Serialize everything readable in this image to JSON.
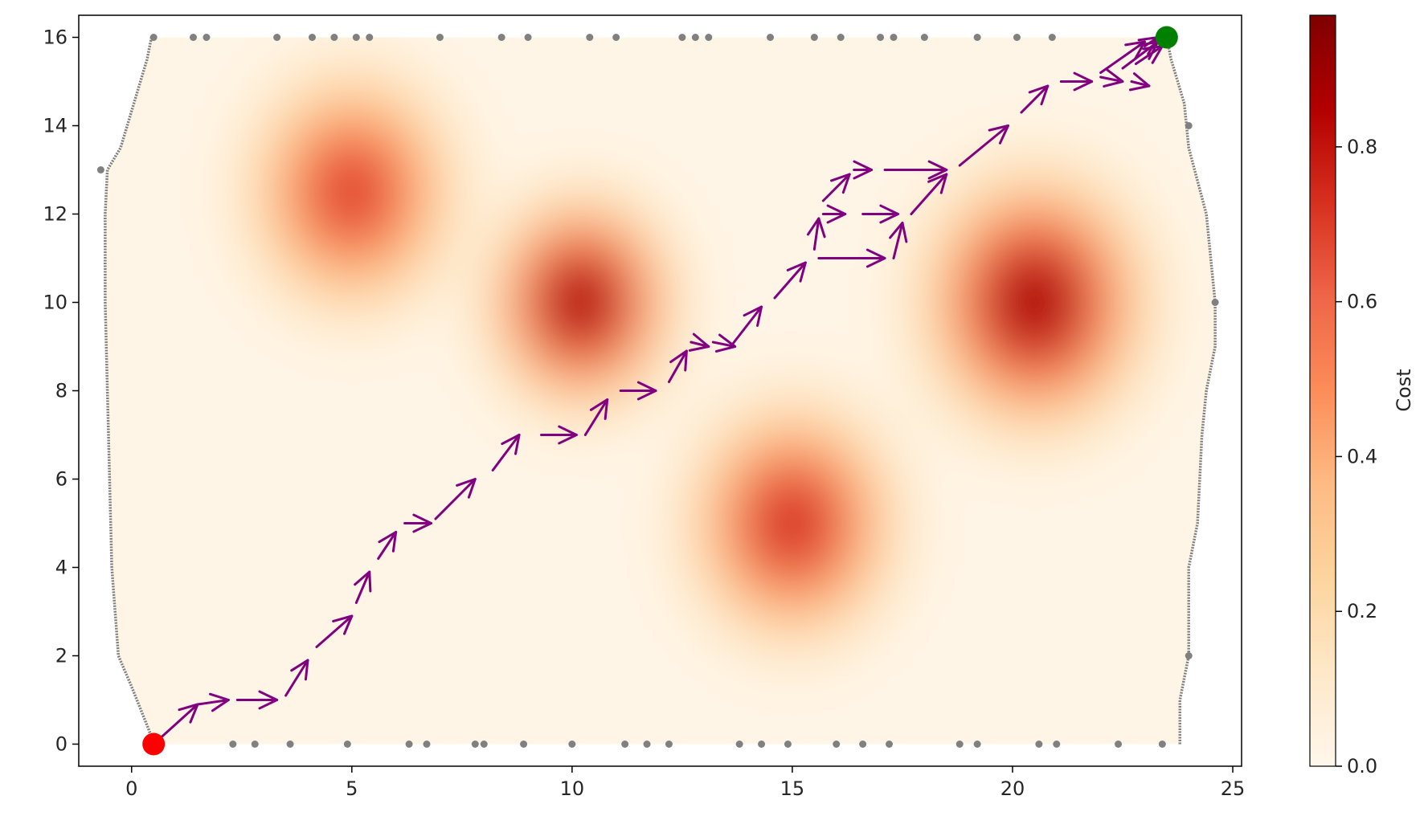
{
  "chart_data": {
    "type": "heatmap",
    "title": "",
    "xlabel": "",
    "ylabel": "",
    "xlim": [
      -1.2,
      25.2
    ],
    "ylim": [
      -0.5,
      16.5
    ],
    "x_ticks": [
      "0",
      "5",
      "10",
      "15",
      "20",
      "25"
    ],
    "y_ticks": [
      "0",
      "2",
      "4",
      "6",
      "8",
      "10",
      "12",
      "14",
      "16"
    ],
    "colorbar": {
      "label": "Cost",
      "colormap": "OrRd",
      "range": [
        0.0,
        0.97
      ],
      "ticks": [
        "0.0",
        "0.2",
        "0.4",
        "0.6",
        "0.8"
      ],
      "colors": [
        "#fff7ec",
        "#fee8c8",
        "#fdd49e",
        "#fdbb84",
        "#fc8d59",
        "#ef6548",
        "#d7301f",
        "#b30000",
        "#7f0000"
      ]
    },
    "field_background": 0.02,
    "obstacles": [
      {
        "x": 5.0,
        "y": 12.5,
        "peak": 0.75,
        "spread": 1.5
      },
      {
        "x": 10.2,
        "y": 10.0,
        "peak": 0.95,
        "spread": 1.3
      },
      {
        "x": 20.5,
        "y": 10.0,
        "peak": 0.95,
        "spread": 1.6
      },
      {
        "x": 15.0,
        "y": 5.0,
        "peak": 0.8,
        "spread": 1.5
      }
    ],
    "region_outline": [
      [
        0.45,
        16
      ],
      [
        0.35,
        15.5
      ],
      [
        0.2,
        15
      ],
      [
        0.05,
        14.5
      ],
      [
        -0.1,
        14
      ],
      [
        -0.25,
        13.5
      ],
      [
        -0.55,
        13
      ],
      [
        -0.6,
        12
      ],
      [
        -0.6,
        10
      ],
      [
        -0.55,
        8
      ],
      [
        -0.5,
        6
      ],
      [
        -0.45,
        4
      ],
      [
        -0.3,
        2
      ],
      [
        0.0,
        1.3
      ],
      [
        0.2,
        0.8
      ],
      [
        0.4,
        0.3
      ],
      [
        0.5,
        0
      ],
      [
        23.8,
        0
      ],
      [
        23.8,
        1
      ],
      [
        24.0,
        2
      ],
      [
        24.0,
        4
      ],
      [
        24.2,
        5
      ],
      [
        24.3,
        7
      ],
      [
        24.4,
        8
      ],
      [
        24.6,
        9
      ],
      [
        24.6,
        10
      ],
      [
        24.5,
        11
      ],
      [
        24.4,
        12
      ],
      [
        24.0,
        13.5
      ],
      [
        23.9,
        14.5
      ],
      [
        23.6,
        15.5
      ],
      [
        23.5,
        16
      ]
    ],
    "boundary_points": [
      [
        0.5,
        16
      ],
      [
        1.4,
        16
      ],
      [
        1.7,
        16
      ],
      [
        3.3,
        16
      ],
      [
        4.1,
        16
      ],
      [
        4.6,
        16
      ],
      [
        5.1,
        16
      ],
      [
        5.4,
        16
      ],
      [
        7.0,
        16
      ],
      [
        8.4,
        16
      ],
      [
        9.0,
        16
      ],
      [
        10.4,
        16
      ],
      [
        11.0,
        16
      ],
      [
        12.5,
        16
      ],
      [
        12.8,
        16
      ],
      [
        13.1,
        16
      ],
      [
        14.5,
        16
      ],
      [
        15.5,
        16
      ],
      [
        16.1,
        16
      ],
      [
        17.0,
        16
      ],
      [
        17.3,
        16
      ],
      [
        18.0,
        16
      ],
      [
        19.2,
        16
      ],
      [
        20.1,
        16
      ],
      [
        20.9,
        16
      ],
      [
        2.3,
        0
      ],
      [
        2.8,
        0
      ],
      [
        3.6,
        0
      ],
      [
        4.9,
        0
      ],
      [
        6.3,
        0
      ],
      [
        6.7,
        0
      ],
      [
        7.8,
        0
      ],
      [
        8.0,
        0
      ],
      [
        8.9,
        0
      ],
      [
        10.0,
        0
      ],
      [
        11.2,
        0
      ],
      [
        11.7,
        0
      ],
      [
        12.2,
        0
      ],
      [
        13.8,
        0
      ],
      [
        14.3,
        0
      ],
      [
        14.9,
        0
      ],
      [
        16.0,
        0
      ],
      [
        16.6,
        0
      ],
      [
        17.2,
        0
      ],
      [
        18.8,
        0
      ],
      [
        19.2,
        0
      ],
      [
        20.6,
        0
      ],
      [
        21.0,
        0
      ],
      [
        22.4,
        0
      ],
      [
        23.4,
        0
      ],
      [
        -0.7,
        13
      ],
      [
        24.6,
        10
      ],
      [
        24.0,
        14
      ],
      [
        24.0,
        2
      ]
    ],
    "path_color": "#800080",
    "path_segments": [
      [
        0.5,
        0,
        1.5,
        0.9
      ],
      [
        1.5,
        0.9,
        2.2,
        1.0
      ],
      [
        2.4,
        1.0,
        3.3,
        1.0
      ],
      [
        3.5,
        1.1,
        4.0,
        1.9
      ],
      [
        4.2,
        2.2,
        5.0,
        2.9
      ],
      [
        5.1,
        3.2,
        5.4,
        3.9
      ],
      [
        5.6,
        4.2,
        6.0,
        4.8
      ],
      [
        6.2,
        5.0,
        6.8,
        5.0
      ],
      [
        6.9,
        5.1,
        7.8,
        6.0
      ],
      [
        8.2,
        6.2,
        8.8,
        7.0
      ],
      [
        9.3,
        7.0,
        10.1,
        7.0
      ],
      [
        10.3,
        7.0,
        10.8,
        7.8
      ],
      [
        11.1,
        8.0,
        11.9,
        8.0
      ],
      [
        12.2,
        8.2,
        12.6,
        8.9
      ],
      [
        12.7,
        9.1,
        13.1,
        9.0
      ],
      [
        13.2,
        9.1,
        13.7,
        9.0
      ],
      [
        13.6,
        9.0,
        14.3,
        9.9
      ],
      [
        14.6,
        10.1,
        15.3,
        10.9
      ],
      [
        15.5,
        11.2,
        15.6,
        11.9
      ],
      [
        15.6,
        11.0,
        17.1,
        11.0
      ],
      [
        17.3,
        11.0,
        17.5,
        11.8
      ],
      [
        15.7,
        12.0,
        16.2,
        12.0
      ],
      [
        16.6,
        12.0,
        17.4,
        12.0
      ],
      [
        15.7,
        12.3,
        16.3,
        12.9
      ],
      [
        16.4,
        13.0,
        16.8,
        13.0
      ],
      [
        17.1,
        13.0,
        18.5,
        13.0
      ],
      [
        17.7,
        12.0,
        18.5,
        12.9
      ],
      [
        18.8,
        13.1,
        19.9,
        14.0
      ],
      [
        20.2,
        14.3,
        20.8,
        14.9
      ],
      [
        21.1,
        15.0,
        21.8,
        15.0
      ],
      [
        22.0,
        15.1,
        22.5,
        15.0
      ],
      [
        22.7,
        15.0,
        23.1,
        14.9
      ],
      [
        22.0,
        15.2,
        23.0,
        15.9
      ],
      [
        22.5,
        15.3,
        23.3,
        15.9
      ],
      [
        22.8,
        15.4,
        23.4,
        15.8
      ],
      [
        23.0,
        15.8,
        23.3,
        16.0
      ]
    ],
    "start": {
      "x": 0.5,
      "y": 0.0,
      "color": "#ff0000"
    },
    "goal": {
      "x": 23.5,
      "y": 16.0,
      "color": "#008000"
    }
  }
}
